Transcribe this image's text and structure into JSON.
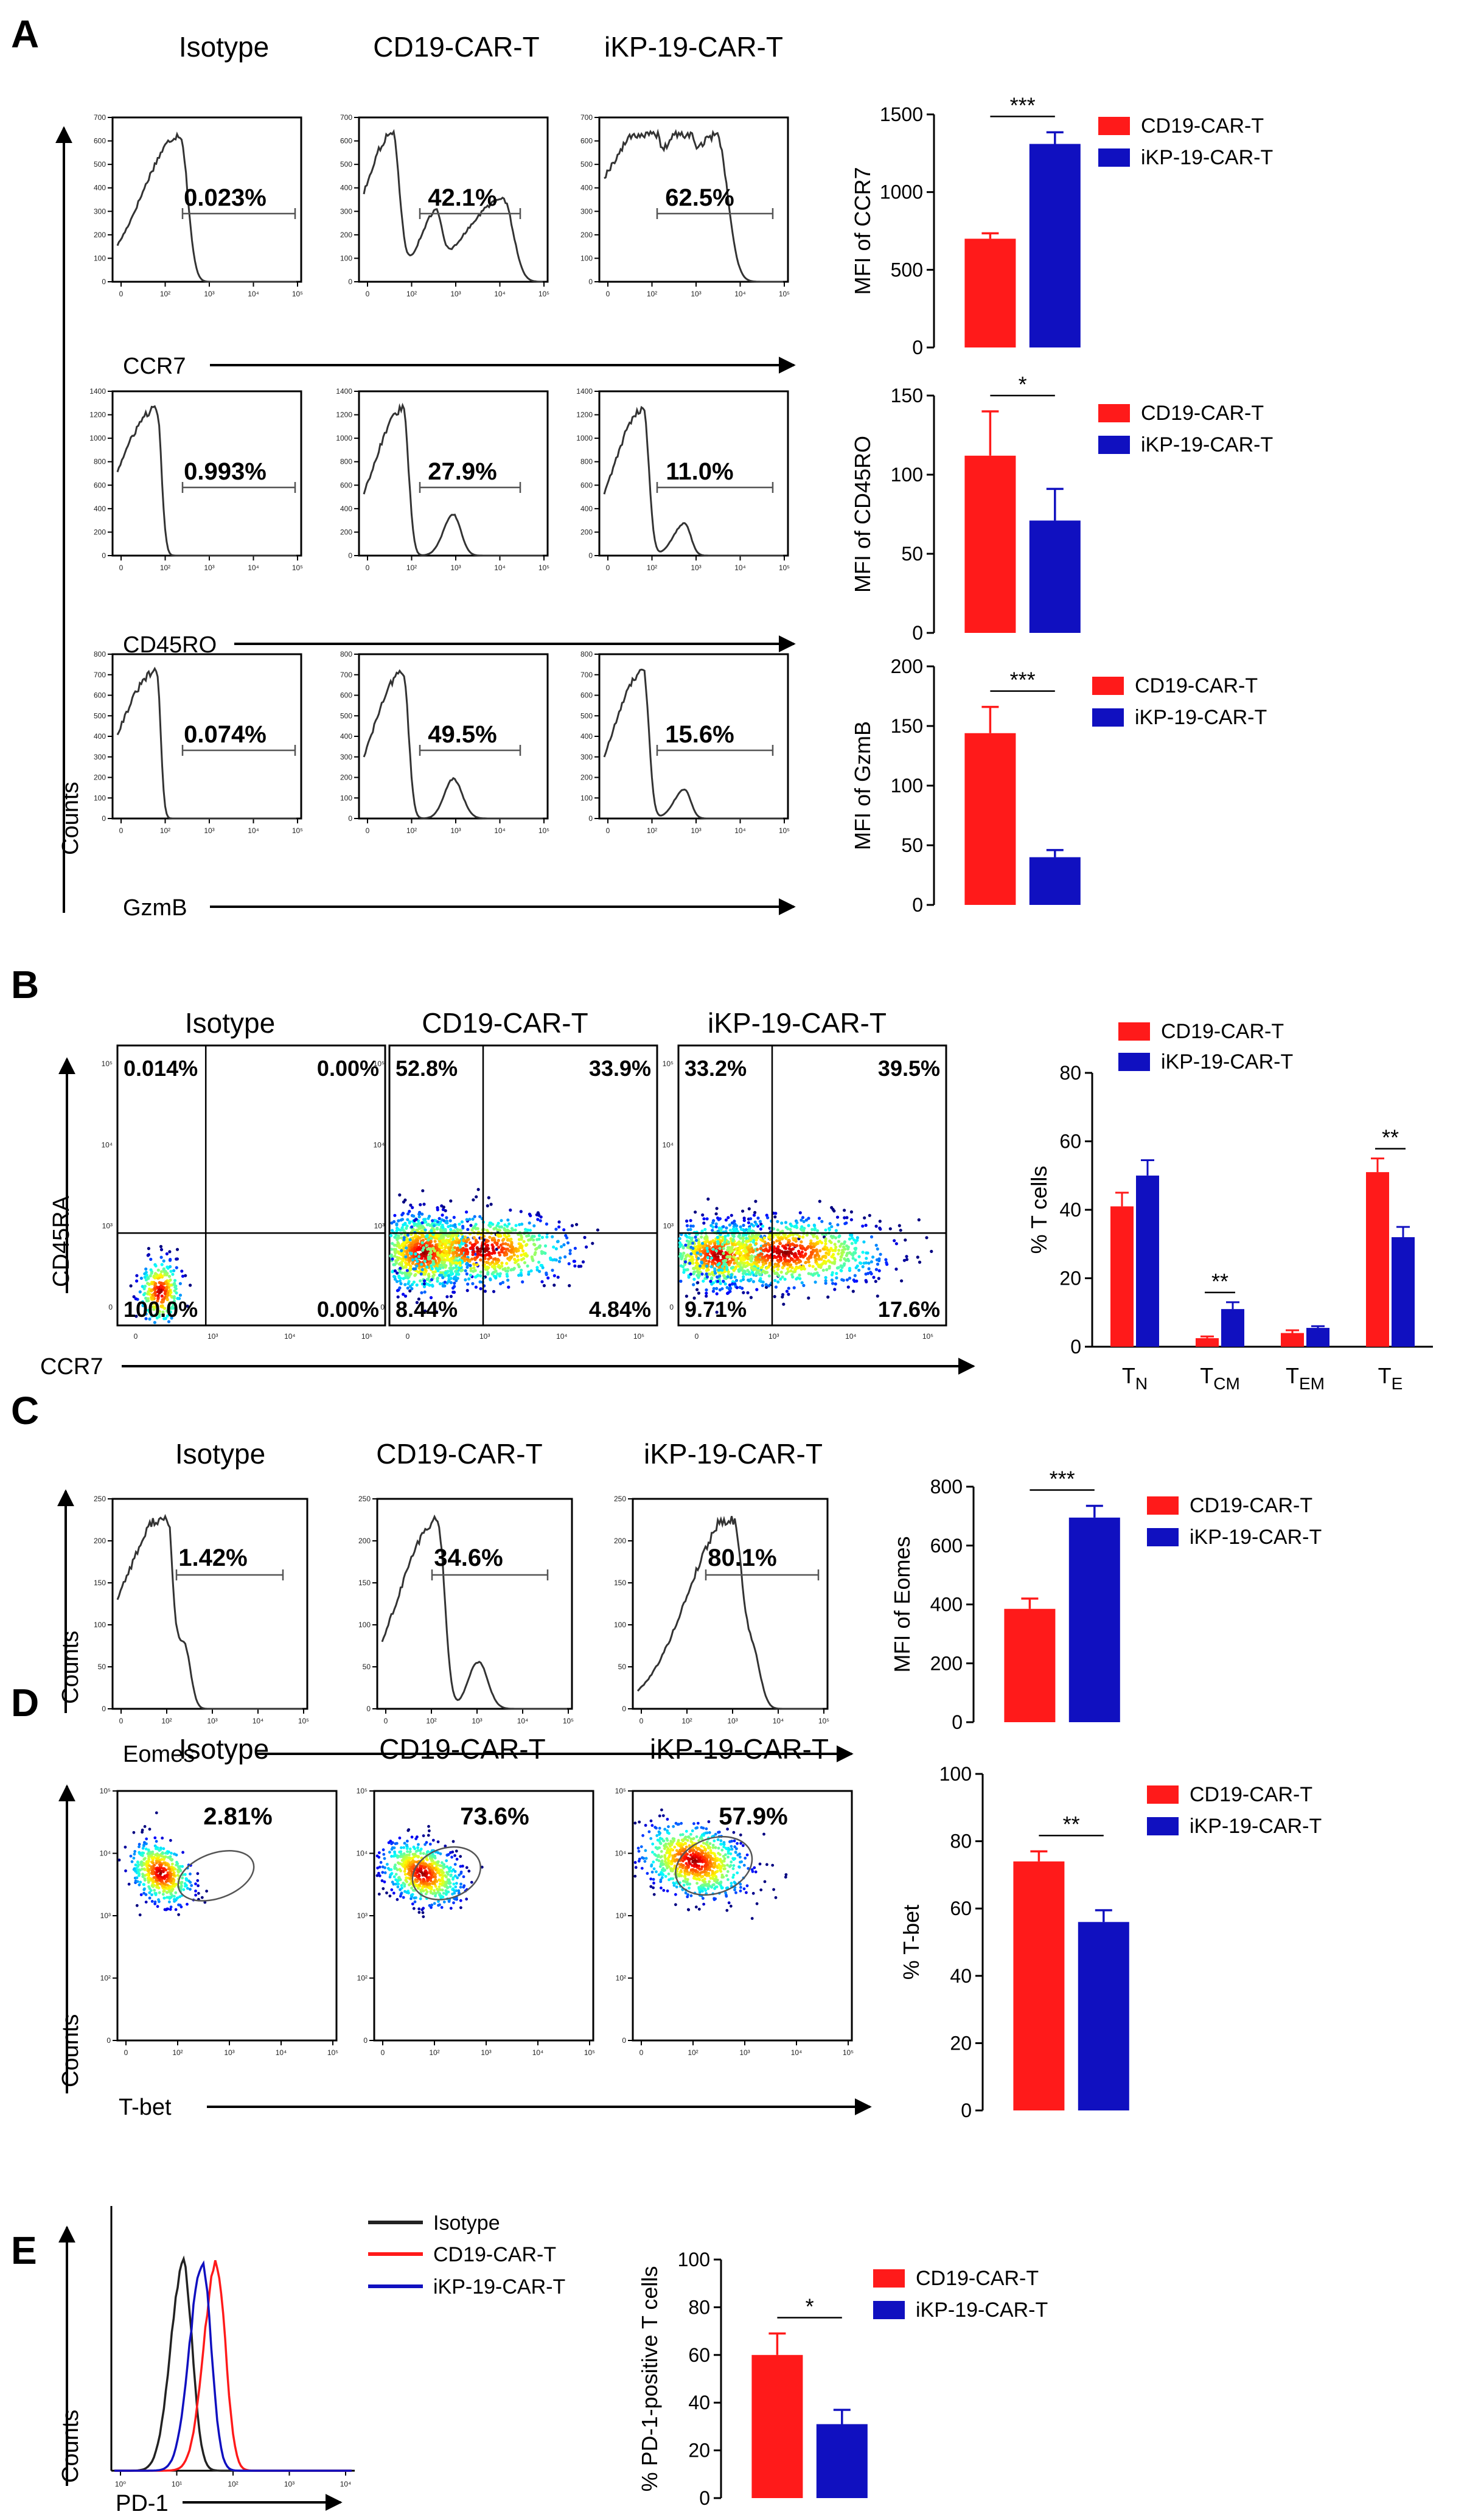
{
  "colors": {
    "cd19": "#ff1a1a",
    "ikp": "#1010c0",
    "isotype": "#222222",
    "axis": "#000000"
  },
  "panel_letters": [
    "A",
    "B",
    "C",
    "D",
    "E"
  ],
  "panelA": {
    "columns": [
      "Isotype",
      "CD19-CAR-T",
      "iKP-19-CAR-T"
    ],
    "y_axis_label": "Counts",
    "rows": [
      {
        "marker": "CCR7",
        "percents": [
          "0.023%",
          "42.1%",
          "62.5%"
        ],
        "yticks": [
          "0",
          "100",
          "200",
          "300",
          "400",
          "500",
          "600",
          "700"
        ],
        "xticks": [
          "0",
          "10²",
          "10³",
          "10⁴",
          "10⁵"
        ]
      },
      {
        "marker": "CD45RO",
        "percents": [
          "0.993%",
          "27.9%",
          "11.0%"
        ],
        "yticks": [
          "0",
          "200",
          "400",
          "600",
          "800",
          "1000",
          "1200",
          "1400"
        ],
        "xticks": [
          "0",
          "10²",
          "10³",
          "10⁴",
          "10⁵"
        ]
      },
      {
        "marker": "GzmB",
        "percents": [
          "0.074%",
          "49.5%",
          "15.6%"
        ],
        "yticks": [
          "0",
          "100",
          "200",
          "300",
          "400",
          "500",
          "600",
          "700",
          "800"
        ],
        "xticks": [
          "0",
          "10²",
          "10³",
          "10⁴",
          "10⁵"
        ]
      }
    ]
  },
  "panelB": {
    "columns": [
      "Isotype",
      "CD19-CAR-T",
      "iKP-19-CAR-T"
    ],
    "y_marker": "CD45RA",
    "x_marker": "CCR7",
    "yticks": [
      "0",
      "10³",
      "10⁴",
      "10⁵"
    ],
    "xticks": [
      "0",
      "10³",
      "10⁴",
      "10⁵"
    ],
    "quadrants": [
      {
        "ul": "0.014%",
        "ur": "0.00%",
        "ll": "100.0%",
        "lr": "0.00%"
      },
      {
        "ul": "52.8%",
        "ur": "33.9%",
        "ll": "8.44%",
        "lr": "4.84%"
      },
      {
        "ul": "33.2%",
        "ur": "39.5%",
        "ll": "9.71%",
        "lr": "17.6%"
      }
    ]
  },
  "panelC": {
    "columns": [
      "Isotype",
      "CD19-CAR-T",
      "iKP-19-CAR-T"
    ],
    "marker": "Eomes",
    "y_axis_label": "Counts",
    "percents": [
      "1.42%",
      "34.6%",
      "80.1%"
    ],
    "yticks": [
      "0",
      "50",
      "100",
      "150",
      "200",
      "250"
    ],
    "xticks": [
      "0",
      "10²",
      "10³",
      "10⁴",
      "10⁵"
    ]
  },
  "panelD": {
    "columns": [
      "Isotype",
      "CD19-CAR-T",
      "iKP-19-CAR-T"
    ],
    "marker": "T-bet",
    "y_axis_label": "Counts",
    "percents": [
      "2.81%",
      "73.6%",
      "57.9%"
    ],
    "yticks": [
      "0",
      "10²",
      "10³",
      "10⁴",
      "10⁵"
    ],
    "xticks": [
      "0",
      "10²",
      "10³",
      "10⁴",
      "10⁵"
    ]
  },
  "panelE": {
    "marker": "PD-1",
    "y_axis_label": "Counts",
    "legend": [
      "Isotype",
      "CD19-CAR-T",
      "iKP-19-CAR-T"
    ],
    "xticks": [
      "10⁰",
      "10¹",
      "10²",
      "10³",
      "10⁴"
    ]
  },
  "chart_data": [
    {
      "id": "A-CCR7",
      "type": "bar",
      "categories": [
        "CD19-CAR-T",
        "iKP-19-CAR-T"
      ],
      "values": [
        700,
        1310
      ],
      "errors": [
        35,
        75
      ],
      "ylabel": "MFI of CCR7",
      "ylim": [
        0,
        1500
      ],
      "yticks": [
        0,
        500,
        1000,
        1500
      ],
      "significance": "***",
      "legend": [
        "CD19-CAR-T",
        "iKP-19-CAR-T"
      ]
    },
    {
      "id": "A-CD45RO",
      "type": "bar",
      "categories": [
        "CD19-CAR-T",
        "iKP-19-CAR-T"
      ],
      "values": [
        112,
        71
      ],
      "errors": [
        28,
        20
      ],
      "ylabel": "MFI of CD45RO",
      "ylim": [
        0,
        150
      ],
      "yticks": [
        0,
        50,
        100,
        150
      ],
      "significance": "*",
      "legend": [
        "CD19-CAR-T",
        "iKP-19-CAR-T"
      ]
    },
    {
      "id": "A-GzmB",
      "type": "bar",
      "categories": [
        "CD19-CAR-T",
        "iKP-19-CAR-T"
      ],
      "values": [
        144,
        40
      ],
      "errors": [
        22,
        6
      ],
      "ylabel": "MFI of GzmB",
      "ylim": [
        0,
        200
      ],
      "yticks": [
        0,
        50,
        100,
        150,
        200
      ],
      "significance": "***",
      "legend": [
        "CD19-CAR-T",
        "iKP-19-CAR-T"
      ]
    },
    {
      "id": "B-subsets",
      "type": "bar",
      "categories": [
        "TN",
        "TCM",
        "TEM",
        "TE"
      ],
      "category_labels": [
        [
          "T",
          "N"
        ],
        [
          "T",
          "CM"
        ],
        [
          "T",
          "EM"
        ],
        [
          "T",
          "E"
        ]
      ],
      "series": [
        {
          "name": "CD19-CAR-T",
          "values": [
            41,
            2.5,
            4,
            51
          ],
          "errors": [
            4,
            0.5,
            0.8,
            4
          ]
        },
        {
          "name": "iKP-19-CAR-T",
          "values": [
            50,
            11,
            5.5,
            32
          ],
          "errors": [
            4.5,
            2,
            0.5,
            3
          ]
        }
      ],
      "ylabel": "% T cells",
      "ylim": [
        0,
        80
      ],
      "yticks": [
        0,
        20,
        40,
        60,
        80
      ],
      "significance": [
        "",
        "**",
        "",
        "**"
      ]
    },
    {
      "id": "C-Eomes",
      "type": "bar",
      "categories": [
        "CD19-CAR-T",
        "iKP-19-CAR-T"
      ],
      "values": [
        385,
        695
      ],
      "errors": [
        35,
        40
      ],
      "ylabel": "MFI of Eomes",
      "ylim": [
        0,
        800
      ],
      "yticks": [
        0,
        200,
        400,
        600,
        800
      ],
      "significance": "***",
      "legend": [
        "CD19-CAR-T",
        "iKP-19-CAR-T"
      ]
    },
    {
      "id": "D-Tbet",
      "type": "bar",
      "categories": [
        "CD19-CAR-T",
        "iKP-19-CAR-T"
      ],
      "values": [
        74,
        56
      ],
      "errors": [
        3,
        3.5
      ],
      "ylabel": "% T-bet",
      "ylim": [
        0,
        100
      ],
      "yticks": [
        0,
        20,
        40,
        60,
        80,
        100
      ],
      "significance": "**",
      "legend": [
        "CD19-CAR-T",
        "iKP-19-CAR-T"
      ]
    },
    {
      "id": "E-PD1",
      "type": "bar",
      "categories": [
        "CD19-CAR-T",
        "iKP-19-CAR-T"
      ],
      "values": [
        60,
        31
      ],
      "errors": [
        9,
        6
      ],
      "ylabel": "% PD-1-positive T cells",
      "ylim": [
        0,
        100
      ],
      "yticks": [
        0,
        20,
        40,
        60,
        80,
        100
      ],
      "significance": "*",
      "legend": [
        "CD19-CAR-T",
        "iKP-19-CAR-T"
      ]
    }
  ]
}
